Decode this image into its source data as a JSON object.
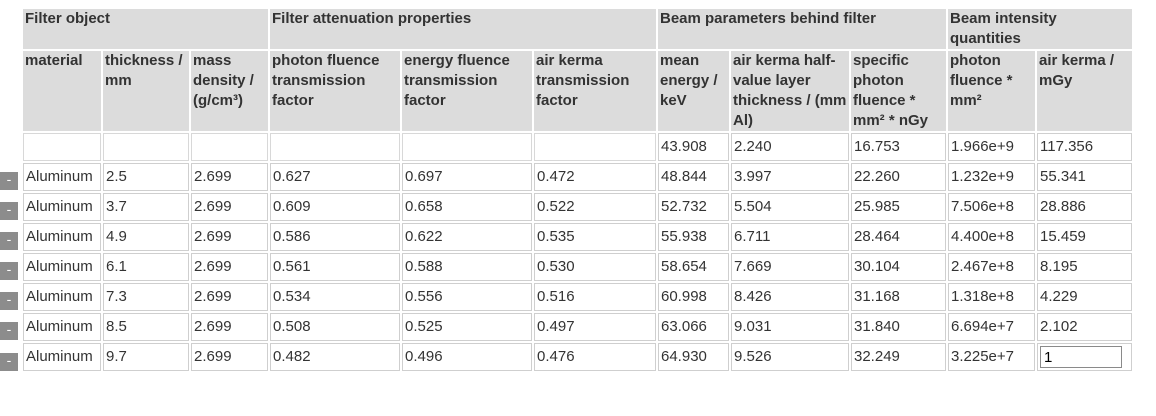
{
  "headers": {
    "groups": [
      "Filter object",
      "Filter attenuation properties",
      "Beam parameters behind filter",
      "Beam intensity quantities"
    ],
    "columns": [
      "material",
      "thickness / mm",
      "mass density / (g/cm³)",
      "photon fluence transmission factor",
      "energy fluence transmission factor",
      "air kerma transmission factor",
      "mean energy / keV",
      "air kerma half-value layer thickness / (mm Al)",
      "specific photon fluence * mm² * nGy",
      "photon fluence * mm²",
      "air kerma / mGy"
    ]
  },
  "unfiltered": {
    "mean_energy": "43.908",
    "hvl": "2.240",
    "specific_fluence": "16.753",
    "fluence": "1.966e+9",
    "air_kerma": "117.356"
  },
  "remove_label": "-",
  "rows": [
    {
      "material": "Aluminum",
      "thickness": "2.5",
      "density": "2.699",
      "pft": "0.627",
      "eft": "0.697",
      "akt": "0.472",
      "mean_energy": "48.844",
      "hvl": "3.997",
      "specific_fluence": "22.260",
      "fluence": "1.232e+9",
      "air_kerma": "55.341"
    },
    {
      "material": "Aluminum",
      "thickness": "3.7",
      "density": "2.699",
      "pft": "0.609",
      "eft": "0.658",
      "akt": "0.522",
      "mean_energy": "52.732",
      "hvl": "5.504",
      "specific_fluence": "25.985",
      "fluence": "7.506e+8",
      "air_kerma": "28.886"
    },
    {
      "material": "Aluminum",
      "thickness": "4.9",
      "density": "2.699",
      "pft": "0.586",
      "eft": "0.622",
      "akt": "0.535",
      "mean_energy": "55.938",
      "hvl": "6.711",
      "specific_fluence": "28.464",
      "fluence": "4.400e+8",
      "air_kerma": "15.459"
    },
    {
      "material": "Aluminum",
      "thickness": "6.1",
      "density": "2.699",
      "pft": "0.561",
      "eft": "0.588",
      "akt": "0.530",
      "mean_energy": "58.654",
      "hvl": "7.669",
      "specific_fluence": "30.104",
      "fluence": "2.467e+8",
      "air_kerma": "8.195"
    },
    {
      "material": "Aluminum",
      "thickness": "7.3",
      "density": "2.699",
      "pft": "0.534",
      "eft": "0.556",
      "akt": "0.516",
      "mean_energy": "60.998",
      "hvl": "8.426",
      "specific_fluence": "31.168",
      "fluence": "1.318e+8",
      "air_kerma": "4.229"
    },
    {
      "material": "Aluminum",
      "thickness": "8.5",
      "density": "2.699",
      "pft": "0.508",
      "eft": "0.525",
      "akt": "0.497",
      "mean_energy": "63.066",
      "hvl": "9.031",
      "specific_fluence": "31.840",
      "fluence": "6.694e+7",
      "air_kerma": "2.102"
    },
    {
      "material": "Aluminum",
      "thickness": "9.7",
      "density": "2.699",
      "pft": "0.482",
      "eft": "0.496",
      "akt": "0.476",
      "mean_energy": "64.930",
      "hvl": "9.526",
      "specific_fluence": "32.249",
      "fluence": "3.225e+7",
      "air_kerma_input": "1"
    }
  ]
}
